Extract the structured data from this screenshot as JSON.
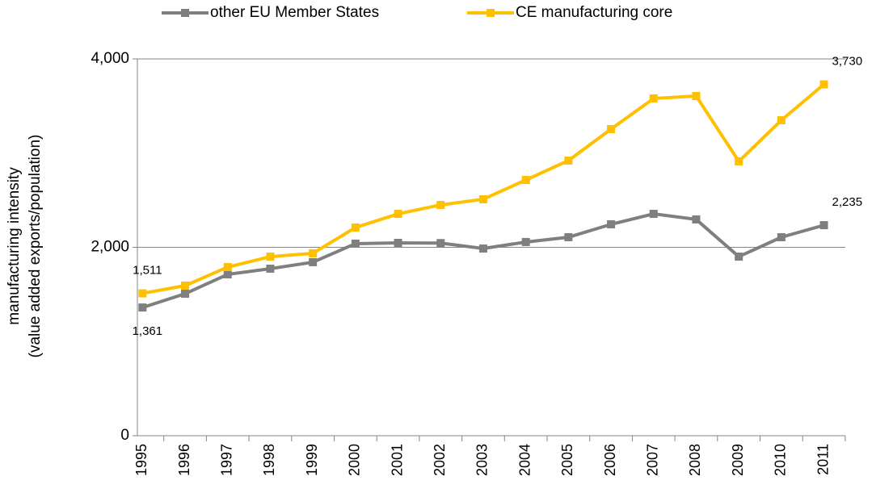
{
  "chart_data": {
    "type": "line",
    "ylabel": [
      "manufacturing intensity",
      "(value added exports/population)"
    ],
    "categories": [
      "1995",
      "1996",
      "1997",
      "1998",
      "1999",
      "2000",
      "2001",
      "2002",
      "2003",
      "2004",
      "2005",
      "2006",
      "2007",
      "2008",
      "2009",
      "2010",
      "2011"
    ],
    "series": [
      {
        "name": "other EU Member States",
        "color": "#7f7f7f",
        "values": [
          1361,
          1507,
          1713,
          1773,
          1842,
          2039,
          2047,
          2045,
          1987,
          2056,
          2107,
          2244,
          2355,
          2296,
          1901,
          2107,
          2235
        ],
        "value_labels": [
          "1,361",
          null,
          null,
          null,
          null,
          null,
          null,
          null,
          null,
          null,
          null,
          null,
          null,
          null,
          null,
          null,
          "2,235"
        ]
      },
      {
        "name": "CE manufacturing core",
        "color": "#ffc000",
        "values": [
          1511,
          1593,
          1790,
          1901,
          1936,
          2210,
          2355,
          2450,
          2510,
          2715,
          2921,
          3255,
          3580,
          3606,
          2912,
          3349,
          3730
        ],
        "value_labels": [
          "1,511",
          null,
          null,
          null,
          null,
          null,
          null,
          null,
          null,
          null,
          null,
          null,
          null,
          null,
          null,
          null,
          "3,730"
        ]
      }
    ],
    "ylim": [
      0,
      4000
    ],
    "yticks": [
      0,
      {
        "value": 2000,
        "label": "2,000"
      },
      {
        "value": 4000,
        "label": "4,000"
      }
    ],
    "grid": true
  }
}
